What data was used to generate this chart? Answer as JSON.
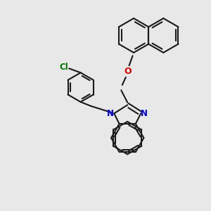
{
  "background_color": "#e8e8e8",
  "bond_color": "#1a1a1a",
  "N_color": "#0000dd",
  "O_color": "#dd0000",
  "Cl_color": "#007700",
  "line_width": 1.5,
  "figsize": [
    3.0,
    3.0
  ],
  "dpi": 100,
  "xlim": [
    0,
    10
  ],
  "ylim": [
    0,
    10
  ]
}
